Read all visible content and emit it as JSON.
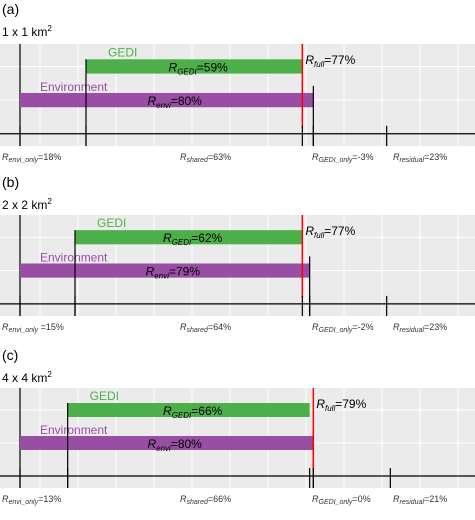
{
  "colors": {
    "panel_bg": "#ebebeb",
    "grid": "#ffffff",
    "gedi": "#4daf4a",
    "envi": "#984ea3",
    "full": "#ff0000",
    "axis": "#000000"
  },
  "chart_data": [
    {
      "type": "bar",
      "panel_label": "(a)",
      "scale_label": "1 x 1 km",
      "scale_sup": "2",
      "xlim": [
        -18,
        105
      ],
      "series": [
        {
          "name": "GEDI",
          "start": 0,
          "end": 59,
          "label_prefix": "R",
          "label_sub": "GEDI",
          "label_suffix": "=59%"
        },
        {
          "name": "Environment",
          "start": -18,
          "end": 62,
          "label_prefix": "R",
          "label_sub": "envi",
          "label_suffix": "=80%"
        }
      ],
      "full": {
        "value": 59,
        "label_prefix": "R",
        "label_sub": "full",
        "label_suffix": "=77%"
      },
      "ticks": [
        -18,
        0,
        59,
        62,
        82
      ],
      "axis_labels": [
        {
          "prefix": "R",
          "sub": "envi_only",
          "suffix": "=18%"
        },
        {
          "prefix": "R",
          "sub": "shared",
          "suffix": "=63%"
        },
        {
          "prefix": "R",
          "sub": "GEDI_only",
          "suffix": "=-3%"
        },
        {
          "prefix": "R",
          "sub": "residual",
          "suffix": "=23%"
        }
      ]
    },
    {
      "type": "bar",
      "panel_label": "(b)",
      "scale_label": "2 x 2 km",
      "scale_sup": "2",
      "xlim": [
        -15,
        108
      ],
      "series": [
        {
          "name": "GEDI",
          "start": 0,
          "end": 62,
          "label_prefix": "R",
          "label_sub": "GEDI",
          "label_suffix": "=62%"
        },
        {
          "name": "Environment",
          "start": -15,
          "end": 64,
          "label_prefix": "R",
          "label_sub": "envi",
          "label_suffix": "=79%"
        }
      ],
      "full": {
        "value": 62,
        "label_prefix": "R",
        "label_sub": "full",
        "label_suffix": "=77%"
      },
      "ticks": [
        -15,
        0,
        62,
        64,
        85
      ],
      "axis_labels": [
        {
          "prefix": "R",
          "sub": "envi_only",
          "suffix": " =15%"
        },
        {
          "prefix": "R",
          "sub": "shared",
          "suffix": "=64%"
        },
        {
          "prefix": "R",
          "sub": "GEDI_only",
          "suffix": "=-2%"
        },
        {
          "prefix": "R",
          "sub": "residual",
          "suffix": "=23%"
        }
      ]
    },
    {
      "type": "bar",
      "panel_label": "(c)",
      "scale_label": "4 x 4 km",
      "scale_sup": "2",
      "xlim": [
        -13,
        110
      ],
      "series": [
        {
          "name": "GEDI",
          "start": 0,
          "end": 66,
          "label_prefix": "R",
          "label_sub": "GEDI",
          "label_suffix": "=66%"
        },
        {
          "name": "Environment",
          "start": -13,
          "end": 67,
          "label_prefix": "R",
          "label_sub": "envi",
          "label_suffix": "=80%"
        }
      ],
      "full": {
        "value": 67,
        "label_prefix": "R",
        "label_sub": "full",
        "label_suffix": "=79%"
      },
      "ticks": [
        -13,
        0,
        66,
        67,
        88
      ],
      "axis_labels": [
        {
          "prefix": "R",
          "sub": "envi_only",
          "suffix": "=13%"
        },
        {
          "prefix": "R",
          "sub": "shared",
          "suffix": "=66%"
        },
        {
          "prefix": "R",
          "sub": "GEDI_only",
          "suffix": "=0%"
        },
        {
          "prefix": "R",
          "sub": "residual",
          "suffix": "=21%"
        }
      ]
    }
  ]
}
